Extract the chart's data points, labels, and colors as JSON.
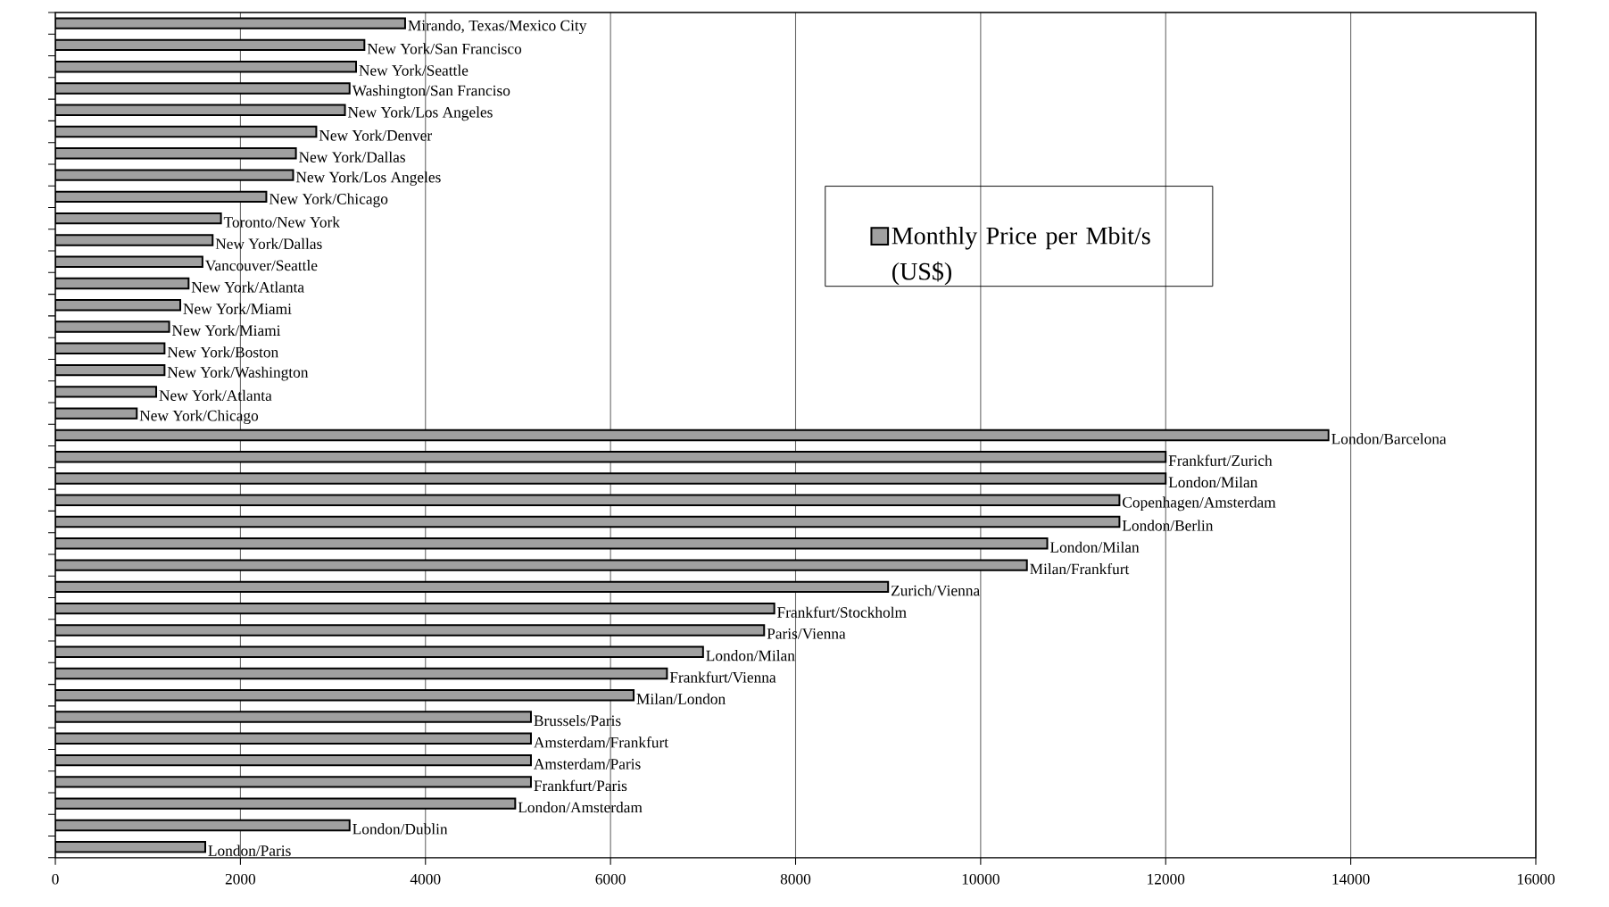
{
  "chart_data": {
    "type": "bar",
    "orientation": "horizontal",
    "categories": [
      "Mirando, Texas/Mexico City",
      "New York/San Francisco",
      "New York/Seattle",
      "Washington/San Franciso",
      "New York/Los Angeles",
      "New York/Denver",
      "New York/Dallas",
      "New York/Los Angeles",
      "New York/Chicago",
      "Toronto/New York",
      "New York/Dallas",
      "Vancouver/Seattle",
      "New York/Atlanta",
      "New York/Miami",
      "New York/Miami",
      "New York/Boston",
      "New York/Washington",
      "New York/Atlanta",
      "New York/Chicago",
      "London/Barcelona",
      "Frankfurt/Zurich",
      "London/Milan",
      "Copenhagen/Amsterdam",
      "London/Berlin",
      "London/Milan",
      "Milan/Frankfurt",
      "Zurich/Vienna",
      "Frankfurt/Stockholm",
      "Paris/Vienna",
      "London/Milan",
      "Frankfurt/Vienna",
      "Milan/London",
      "Brussels/Paris",
      "Amsterdam/Frankfurt",
      "Amsterdam/Paris",
      "Frankfurt/Paris",
      "London/Amsterdam",
      "London/Dublin",
      "London/Paris"
    ],
    "series": [
      {
        "name": "Monthly Price per Mbit/s (US$)",
        "color": "#a0a0a0",
        "values": [
          3780,
          3340,
          3250,
          3180,
          3130,
          2820,
          2600,
          2570,
          2280,
          1790,
          1700,
          1590,
          1440,
          1350,
          1230,
          1180,
          1180,
          1090,
          880,
          13760,
          12000,
          12000,
          11500,
          11500,
          10720,
          10500,
          9000,
          7770,
          7660,
          7000,
          6610,
          6250,
          5140,
          5140,
          5140,
          5140,
          4970,
          3180,
          1620
        ]
      }
    ],
    "xlim": [
      0,
      16000
    ],
    "xticks": [
      0,
      2000,
      4000,
      6000,
      8000,
      10000,
      12000,
      14000,
      16000
    ],
    "grid": "x",
    "legend": "top right",
    "tick_labels": "x"
  }
}
